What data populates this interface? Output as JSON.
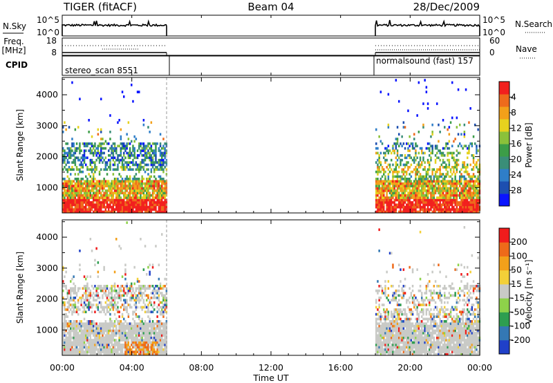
{
  "header": {
    "title": "TIGER (fitACF)",
    "beam": "Beam 04",
    "date": "28/Dec/2009"
  },
  "panels": {
    "noise": {
      "left_label": "N.Sky",
      "right_label": "N.Search",
      "left_ticks": [
        "10^5",
        "10^0"
      ],
      "right_ticks": [
        "10^5",
        "10^0"
      ]
    },
    "freq": {
      "left_label_line1": "Freq.",
      "left_label_line2": "[MHz]",
      "right_label": "Nave",
      "left_ticks": [
        "18",
        "8"
      ],
      "right_ticks": [
        "60",
        "0"
      ]
    },
    "cpid": {
      "label": "CPID",
      "segment1": "stereo_scan 8551",
      "segment2": "normalsound (fast) 157"
    }
  },
  "chart_data": [
    {
      "type": "heatmap",
      "name": "power",
      "ylabel": "Slant Range [km]",
      "yticks": [
        "1000",
        "2000",
        "3000",
        "4000"
      ],
      "ylim": [
        180,
        4560
      ],
      "xlim_hours": [
        0,
        24
      ],
      "colorbar": {
        "label": "Power [dB]",
        "ticks": [
          "4",
          "8",
          "12",
          "16",
          "20",
          "24",
          "28"
        ],
        "colors": [
          "#0a14ff",
          "#1d4fb0",
          "#2f7ec8",
          "#3a8e78",
          "#3c9d48",
          "#8bc13a",
          "#e6d21e",
          "#f3a01a",
          "#ee6b1c",
          "#f2201e"
        ]
      },
      "data_windows_hours": [
        [
          0,
          6
        ],
        [
          18,
          24
        ]
      ]
    },
    {
      "type": "heatmap",
      "name": "velocity",
      "ylabel": "Slant Range [km]",
      "yticks": [
        "1000",
        "2000",
        "3000",
        "4000"
      ],
      "ylim": [
        180,
        4560
      ],
      "xlim_hours": [
        0,
        24
      ],
      "colorbar": {
        "label": "Velocity [m s⁻¹]",
        "ticks": [
          "200",
          "100",
          "50",
          "15",
          "-15",
          "-50",
          "-100",
          "-200"
        ],
        "colors": [
          "#2040c8",
          "#3478b4",
          "#2e9e50",
          "#8ed24a",
          "#c9cac6",
          "#f3d038",
          "#f3a01a",
          "#ee6a1a",
          "#f01c1c"
        ]
      },
      "data_windows_hours": [
        [
          0,
          6
        ],
        [
          18,
          24
        ]
      ]
    }
  ],
  "xaxis": {
    "label": "Time UT",
    "ticks": [
      "00:00",
      "04:00",
      "08:00",
      "12:00",
      "16:00",
      "20:00",
      "00:00"
    ]
  }
}
